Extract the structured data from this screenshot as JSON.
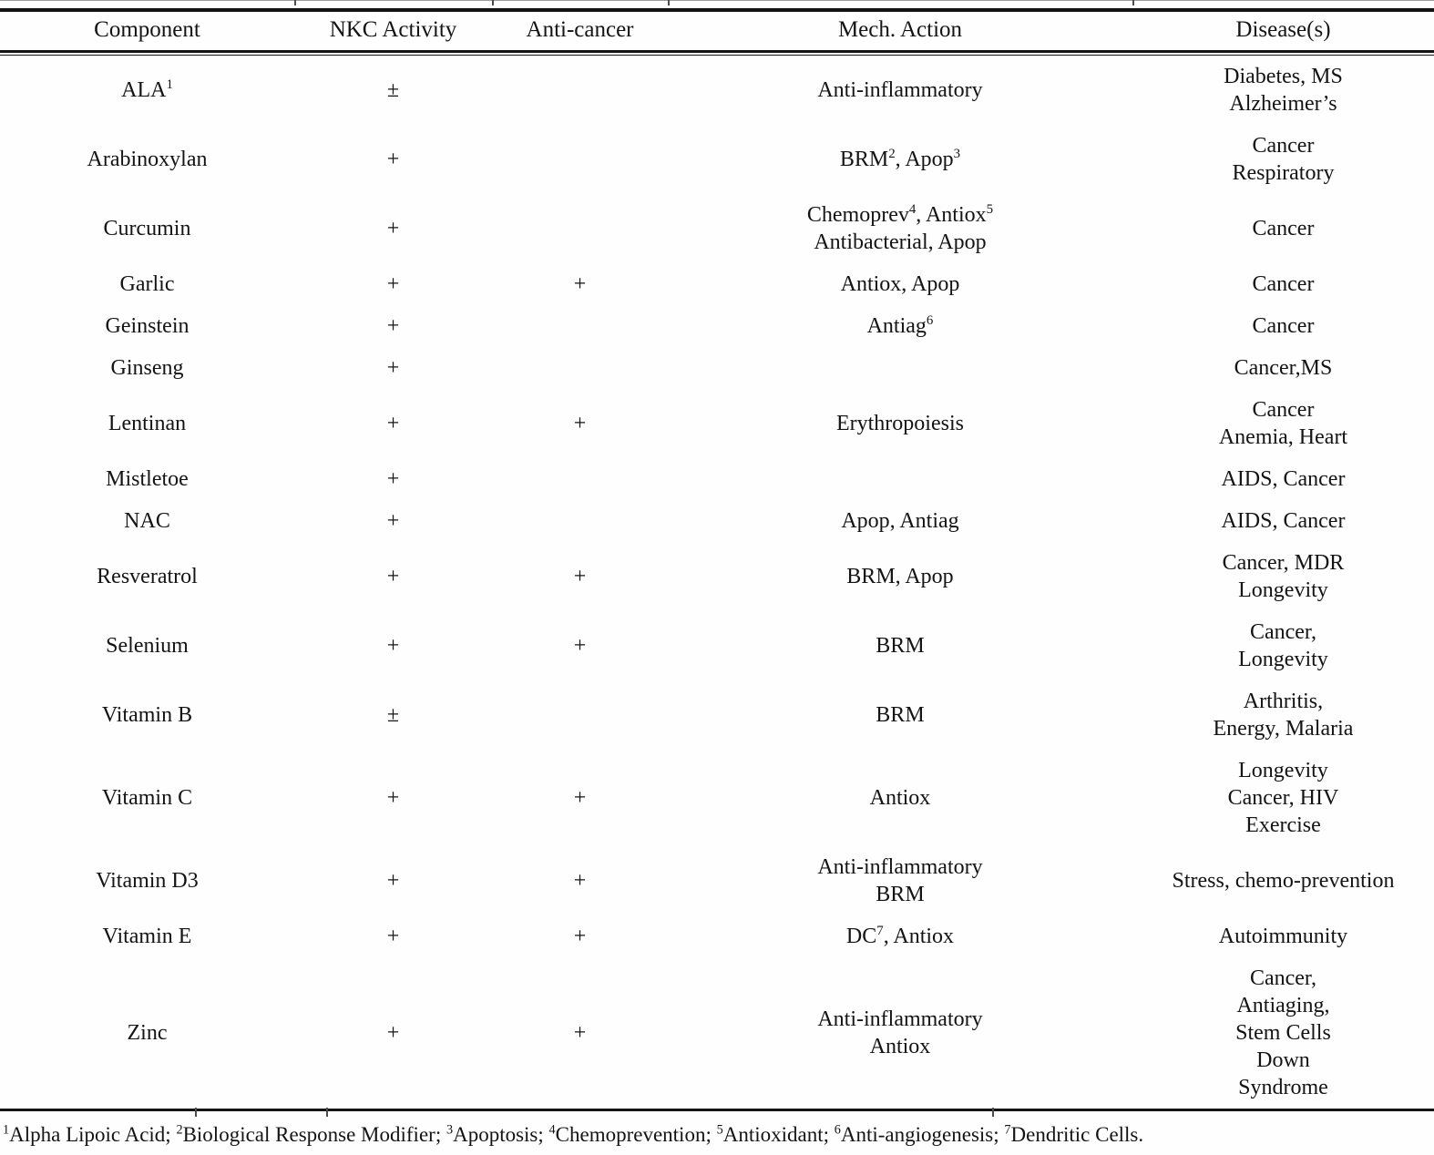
{
  "table": {
    "columns": [
      "Component",
      "NKC Activity",
      "Anti-cancer",
      "Mech. Action",
      "Disease(s)"
    ],
    "rows": [
      {
        "component": "ALA{1}",
        "nkc_activity": "±",
        "anti_cancer": "",
        "mech_action": [
          "Anti-inflammatory"
        ],
        "diseases": [
          "Diabetes, MS",
          "Alzheimer’s"
        ]
      },
      {
        "component": "Arabinoxylan",
        "nkc_activity": "+",
        "anti_cancer": "",
        "mech_action": [
          "BRM{2}, Apop{3}"
        ],
        "diseases": [
          "Cancer",
          "Respiratory"
        ]
      },
      {
        "component": "Curcumin",
        "nkc_activity": "+",
        "anti_cancer": "",
        "mech_action": [
          "Chemoprev{4}, Antiox{5}",
          "Antibacterial, Apop"
        ],
        "diseases": [
          "Cancer"
        ]
      },
      {
        "component": "Garlic",
        "nkc_activity": "+",
        "anti_cancer": "+",
        "mech_action": [
          "Antiox, Apop"
        ],
        "diseases": [
          "Cancer"
        ]
      },
      {
        "component": "Geinstein",
        "nkc_activity": "+",
        "anti_cancer": "",
        "mech_action": [
          "Antiag{6}"
        ],
        "diseases": [
          "Cancer"
        ]
      },
      {
        "component": "Ginseng",
        "nkc_activity": "+",
        "anti_cancer": "",
        "mech_action": [],
        "diseases": [
          "Cancer,MS"
        ]
      },
      {
        "component": "Lentinan",
        "nkc_activity": "+",
        "anti_cancer": "+",
        "mech_action": [
          "Erythropoiesis"
        ],
        "diseases": [
          "Cancer",
          "Anemia, Heart"
        ]
      },
      {
        "component": "Mistletoe",
        "nkc_activity": "+",
        "anti_cancer": "",
        "mech_action": [],
        "diseases": [
          "AIDS, Cancer"
        ]
      },
      {
        "component": "NAC",
        "nkc_activity": "+",
        "anti_cancer": "",
        "mech_action": [
          "Apop, Antiag"
        ],
        "diseases": [
          "AIDS, Cancer"
        ]
      },
      {
        "component": "Resveratrol",
        "nkc_activity": "+",
        "anti_cancer": "+",
        "mech_action": [
          "BRM, Apop"
        ],
        "diseases": [
          "Cancer, MDR",
          "Longevity"
        ]
      },
      {
        "component": "Selenium",
        "nkc_activity": "+",
        "anti_cancer": "+",
        "mech_action": [
          "BRM"
        ],
        "diseases": [
          "Cancer,",
          "Longevity"
        ]
      },
      {
        "component": "Vitamin B",
        "nkc_activity": "±",
        "anti_cancer": "",
        "mech_action": [
          "BRM"
        ],
        "diseases": [
          "Arthritis,",
          "Energy, Malaria"
        ]
      },
      {
        "component": "Vitamin C",
        "nkc_activity": "+",
        "anti_cancer": "+",
        "mech_action": [
          "Antiox"
        ],
        "diseases": [
          "Longevity",
          "Cancer, HIV",
          "Exercise"
        ]
      },
      {
        "component": "Vitamin D3",
        "nkc_activity": "+",
        "anti_cancer": "+",
        "mech_action": [
          "Anti-inflammatory",
          "BRM"
        ],
        "diseases": [
          "Stress, chemo-prevention"
        ]
      },
      {
        "component": "Vitamin E",
        "nkc_activity": "+",
        "anti_cancer": "+",
        "mech_action": [
          "DC{7}, Antiox"
        ],
        "diseases": [
          "Autoimmunity"
        ]
      },
      {
        "component": "Zinc",
        "nkc_activity": "+",
        "anti_cancer": "+",
        "mech_action": [
          "Anti-inflammatory",
          "Antiox"
        ],
        "diseases": [
          "Cancer,",
          "Antiaging,",
          "Stem Cells",
          "Down",
          "Syndrome"
        ]
      }
    ]
  },
  "footnote": "{1}Alpha Lipoic Acid; {2}Biological Response Modifier; {3}Apoptosis; {4}Chemoprevention; {5}Antioxidant; {6}Anti-angiogenesis; {7}Dendritic Cells."
}
